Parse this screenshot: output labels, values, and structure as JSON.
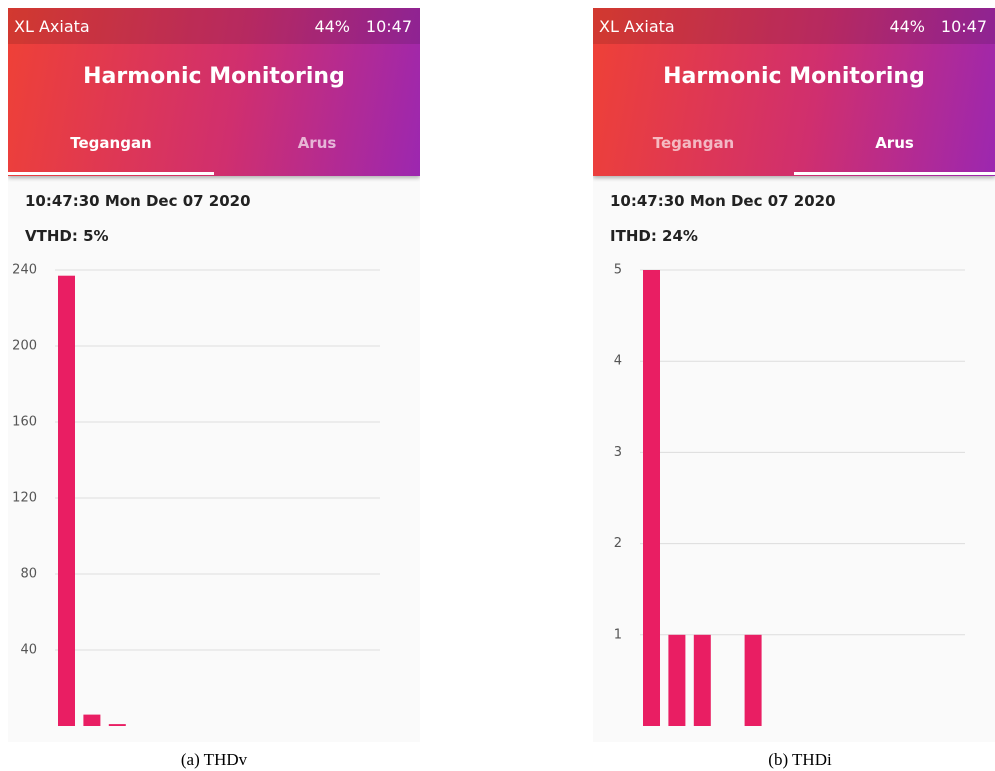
{
  "panels": [
    {
      "status": {
        "carrier": "XL Axiata",
        "battery": "44%",
        "time": "10:47"
      },
      "title": "Harmonic Monitoring",
      "tabs": [
        "Tegangan",
        "Arus"
      ],
      "active_tab": 0,
      "timestamp": "10:47:30 Mon Dec 07 2020",
      "thd": "VTHD: 5%",
      "chart_data": {
        "type": "bar",
        "values": [
          237,
          6,
          1
        ],
        "color": "#e91e63",
        "ylim": [
          0,
          240
        ],
        "yticks": [
          40,
          80,
          120,
          160,
          200,
          240
        ],
        "grid": true
      },
      "caption": "(a) THDv"
    },
    {
      "status": {
        "carrier": "XL Axiata",
        "battery": "44%",
        "time": "10:47"
      },
      "title": "Harmonic Monitoring",
      "tabs": [
        "Tegangan",
        "Arus"
      ],
      "active_tab": 1,
      "timestamp": "10:47:30 Mon Dec 07 2020",
      "thd": "ITHD: 24%",
      "chart_data": {
        "type": "bar",
        "values": [
          5,
          1,
          1,
          0,
          1
        ],
        "color": "#e91e63",
        "ylim": [
          0,
          5
        ],
        "yticks": [
          1,
          2,
          3,
          4,
          5
        ],
        "grid": true
      },
      "caption": "(b) THDi"
    }
  ]
}
